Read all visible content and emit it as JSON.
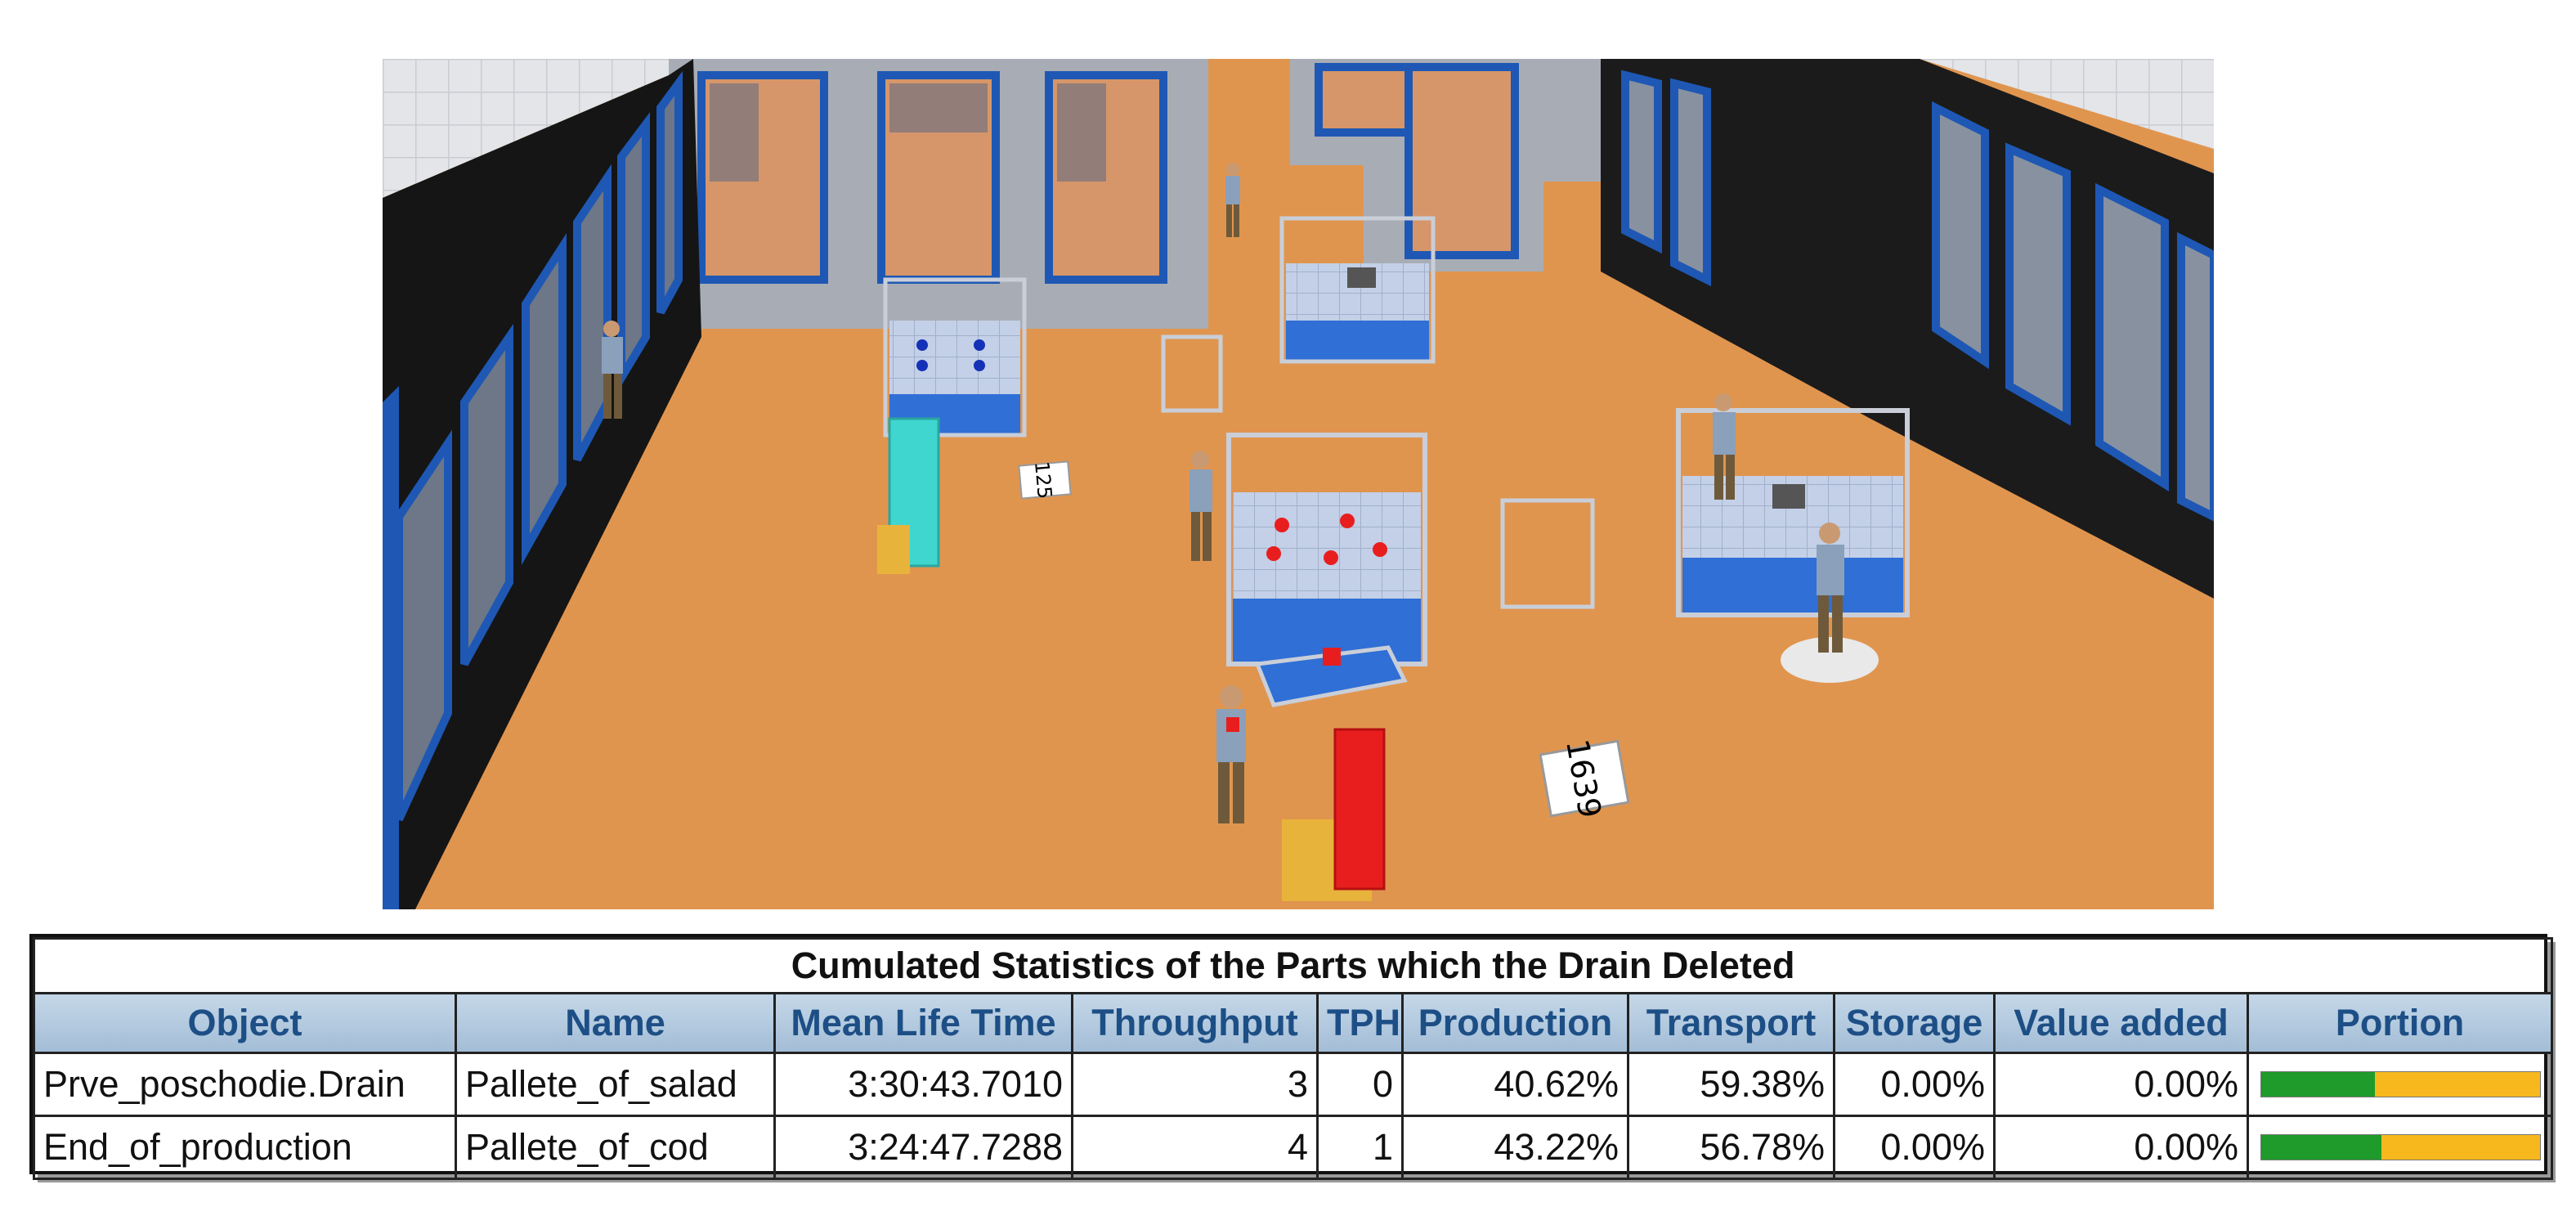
{
  "scene": {
    "labels": {
      "left_tag": "125",
      "right_tag": "1639"
    },
    "colors": {
      "floor": "#e0954f",
      "wall": "#a9aeb6",
      "window_frame": "#1e58b4",
      "workstation": "#2f6fd6",
      "pallet": "#e8b33a",
      "red_box": "#e81e1e",
      "cyan_stack": "#3fd6cf"
    }
  },
  "stats": {
    "title": "Cumulated Statistics of the Parts which the Drain Deleted",
    "headers": [
      "Object",
      "Name",
      "Mean Life Time",
      "Throughput",
      "TPH",
      "Production",
      "Transport",
      "Storage",
      "Value added",
      "Portion"
    ],
    "rows": [
      {
        "object": "Prve_poschodie.Drain",
        "name": "Pallete_of_salad",
        "mean_life_time": "3:30:43.7010",
        "throughput": "3",
        "tph": "0",
        "production": "40.62%",
        "transport": "59.38%",
        "storage": "0.00%",
        "value_added": "0.00%",
        "portion_production": 0.4062
      },
      {
        "object": "End_of_production",
        "name": "Pallete_of_cod",
        "mean_life_time": "3:24:47.7288",
        "throughput": "4",
        "tph": "1",
        "production": "43.22%",
        "transport": "56.78%",
        "storage": "0.00%",
        "value_added": "0.00%",
        "portion_production": 0.4322
      }
    ],
    "colors": {
      "header_bg": "#aec6dc",
      "header_text": "#1d4f86",
      "link_text": "#2a6cc9",
      "bar_production": "#1e9b2a",
      "bar_transport": "#f6b81c"
    }
  }
}
